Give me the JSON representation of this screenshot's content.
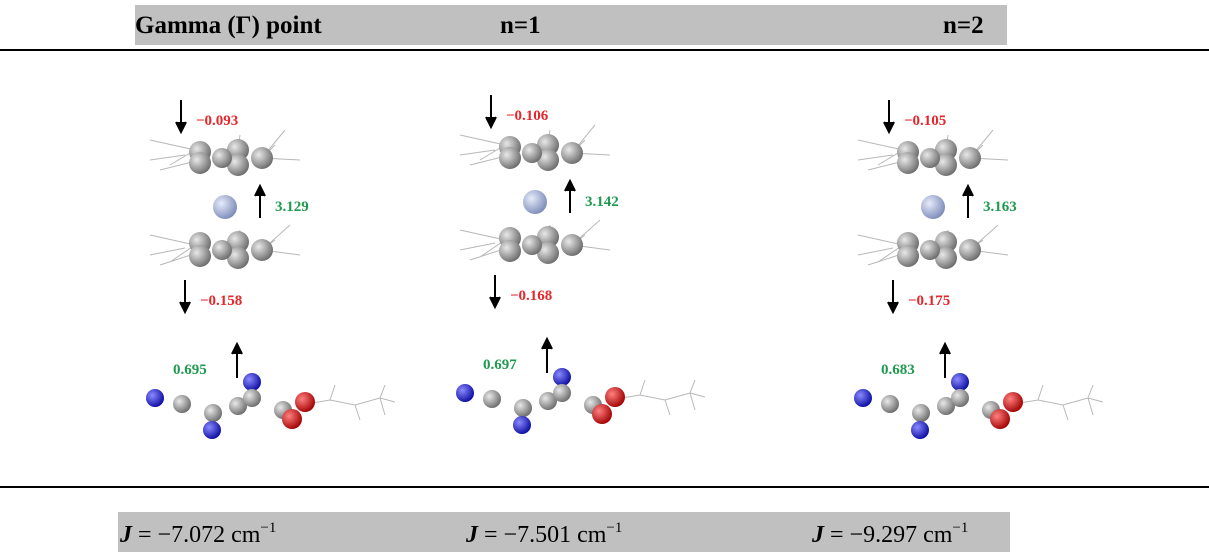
{
  "header": {
    "columns": [
      "Gamma (Γ) point",
      "n=1",
      "n=2"
    ]
  },
  "panels": [
    {
      "top": "−0.093",
      "center": "3.129",
      "bottom_ring": "−0.158",
      "ligand": "0.695"
    },
    {
      "top": "−0.106",
      "center": "3.142",
      "bottom_ring": "−0.168",
      "ligand": "0.697"
    },
    {
      "top": "−0.105",
      "center": "3.163",
      "bottom_ring": "−0.175",
      "ligand": "0.683"
    }
  ],
  "coupling": [
    {
      "symbol": "J",
      "relation": "=",
      "value": "−7.072",
      "unit": "cm",
      "exponent": "−1"
    },
    {
      "symbol": "J",
      "relation": "=",
      "value": "−7.501",
      "unit": "cm",
      "exponent": "−1"
    },
    {
      "symbol": "J",
      "relation": "=",
      "value": "−9.297",
      "unit": "cm",
      "exponent": "−1"
    }
  ]
}
